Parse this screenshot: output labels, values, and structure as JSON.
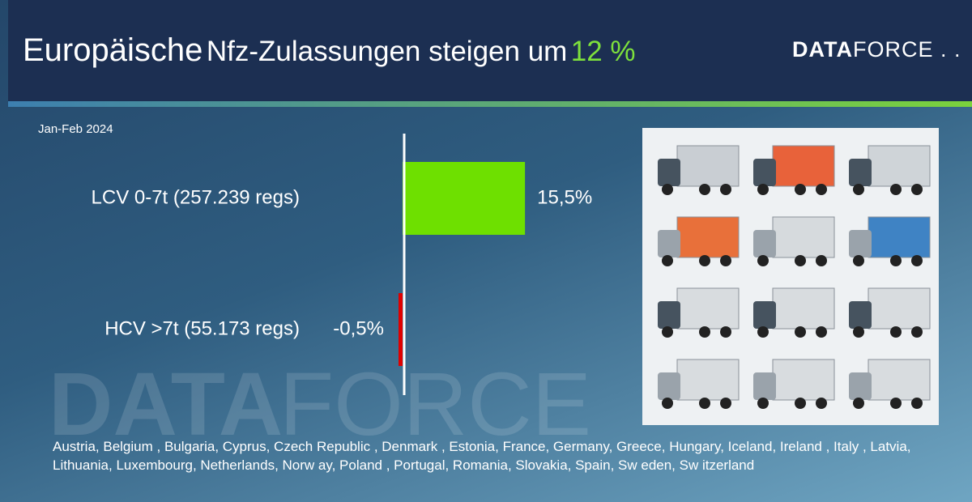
{
  "header": {
    "title": [
      "Europäische",
      "Nfz-Zulassungen steigen um",
      "12 %"
    ],
    "logo": [
      "DATA",
      "FORCE"
    ]
  },
  "chart_data": {
    "type": "bar",
    "orientation": "horizontal",
    "subtitle": "Jan-Feb 2024",
    "categories": [
      "LCV 0-7t (257.239 regs)",
      "HCV >7t (55.173 regs)"
    ],
    "values": [
      15.5,
      -0.5
    ],
    "value_labels": [
      "15,5%",
      "-0,5%"
    ],
    "colors": [
      "#6ee000",
      "#e00000"
    ],
    "xlim": [
      -20,
      40
    ]
  },
  "footer": {
    "countries": "Austria, Belgium , Bulgaria, Cyprus, Czech Republic , Denmark , Estonia, France, Germany, Greece, Hungary, Iceland, Ireland , Italy , Latvia, Lithuania, Luxembourg, Netherlands, Norw ay, Poland , Portugal, Romania,  Slovakia, Spain, Sw eden, Sw itzerland"
  }
}
